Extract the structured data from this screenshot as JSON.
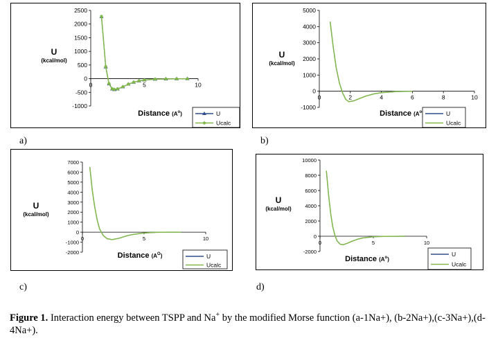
{
  "colors": {
    "u_line": "#2f4d8c",
    "ucalc_line": "#82b84a",
    "frame": "#000000",
    "text": "#000000"
  },
  "sub_labels": [
    "a)",
    "b)",
    "c)",
    "d)"
  ],
  "caption": {
    "lead": "Figure 1.",
    "text": " Interaction energy between TSPP and Na",
    "sup": "+",
    "tail": " by the modified Morse function (a-1Na+), (b-2Na+),(c-3Na+),(d-4Na+)."
  },
  "chart_data": [
    {
      "type": "line",
      "title": "",
      "xlabel_main": "Distance",
      "xlabel_unit": "(A",
      "xlabel_sup": "o",
      "xlabel_close": ")",
      "ylabel": "U",
      "ylabel_unit": "(kcal/mol)",
      "xlim": [
        0,
        10
      ],
      "ylim": [
        -1000,
        2500
      ],
      "x_ticks": [
        0,
        5,
        10
      ],
      "y_ticks": [
        2500,
        2000,
        1500,
        1000,
        500,
        0,
        -500,
        -1000
      ],
      "legend": [
        "U",
        "Ucalc"
      ],
      "series": [
        {
          "name": "U",
          "marker": "triangle",
          "x": [
            1.0,
            1.4,
            1.7,
            2.0,
            2.2,
            2.5,
            3.0,
            3.5,
            4.0,
            4.5,
            5.0,
            6.0,
            7.0,
            8.0,
            9.0
          ],
          "y": [
            2270,
            430,
            -190,
            -380,
            -400,
            -380,
            -300,
            -200,
            -130,
            -80,
            -50,
            -20,
            -10,
            -5,
            -2
          ]
        },
        {
          "name": "Ucalc",
          "marker": "circle",
          "x": [
            1.0,
            1.4,
            1.7,
            2.0,
            2.2,
            2.5,
            3.0,
            3.5,
            4.0,
            4.5,
            5.0,
            6.0,
            7.0,
            8.0,
            9.0
          ],
          "y": [
            2280,
            440,
            -180,
            -370,
            -395,
            -375,
            -295,
            -200,
            -130,
            -80,
            -50,
            -20,
            -10,
            -5,
            -2
          ]
        }
      ]
    },
    {
      "type": "line",
      "title": "",
      "xlabel_main": "Distance",
      "xlabel_unit": "(A",
      "xlabel_sup": "o",
      "xlabel_close": ")",
      "ylabel": "U",
      "ylabel_unit": "(kcal/mol)",
      "xlim": [
        0,
        10
      ],
      "ylim": [
        -1000,
        5000
      ],
      "x_ticks": [
        0,
        2,
        4,
        6,
        8,
        10
      ],
      "y_ticks": [
        5000,
        4000,
        3000,
        2000,
        1000,
        0,
        -1000
      ],
      "legend": [
        "U",
        "Ucalc"
      ],
      "series": [
        {
          "name": "U",
          "x": [
            0.7,
            0.9,
            1.1,
            1.3,
            1.5,
            1.7,
            1.9,
            2.2,
            2.6,
            3.0,
            3.5,
            4.0,
            5.0,
            6.0
          ],
          "y": [
            4300,
            2700,
            1400,
            500,
            -100,
            -500,
            -650,
            -600,
            -450,
            -300,
            -170,
            -90,
            -20,
            0
          ]
        },
        {
          "name": "Ucalc",
          "x": [
            0.7,
            0.9,
            1.1,
            1.3,
            1.5,
            1.7,
            1.9,
            2.2,
            2.6,
            3.0,
            3.5,
            4.0,
            5.0,
            6.0
          ],
          "y": [
            4300,
            2700,
            1400,
            500,
            -100,
            -500,
            -650,
            -600,
            -450,
            -300,
            -170,
            -90,
            -20,
            0
          ]
        }
      ]
    },
    {
      "type": "line",
      "title": "",
      "xlabel_main": "Distance",
      "xlabel_unit": "(A",
      "xlabel_sup": "O",
      "xlabel_close": ")",
      "ylabel": "U",
      "ylabel_unit": "(kcal/mol)",
      "xlim": [
        0,
        10
      ],
      "ylim": [
        -2000,
        7000
      ],
      "x_ticks": [
        0,
        5,
        10
      ],
      "y_ticks": [
        7000,
        6000,
        5000,
        4000,
        3000,
        2000,
        1000,
        0,
        -1000,
        -2000
      ],
      "legend": [
        "U",
        "Ucalc"
      ],
      "series": [
        {
          "name": "U",
          "x": [
            0.6,
            0.8,
            1.0,
            1.2,
            1.4,
            1.7,
            2.0,
            2.4,
            3.0,
            3.5,
            4.0,
            5.0,
            6.0,
            7.0,
            8.0
          ],
          "y": [
            6500,
            4200,
            2500,
            1200,
            300,
            -350,
            -650,
            -750,
            -600,
            -400,
            -250,
            -80,
            -20,
            0,
            0
          ]
        },
        {
          "name": "Ucalc",
          "x": [
            0.6,
            0.8,
            1.0,
            1.2,
            1.4,
            1.7,
            2.0,
            2.4,
            3.0,
            3.5,
            4.0,
            5.0,
            6.0,
            7.0,
            8.0
          ],
          "y": [
            6500,
            4200,
            2500,
            1200,
            300,
            -350,
            -650,
            -750,
            -600,
            -400,
            -250,
            -80,
            -20,
            0,
            0
          ]
        }
      ]
    },
    {
      "type": "line",
      "title": "",
      "xlabel_main": "Distance",
      "xlabel_unit": "(A",
      "xlabel_sup": "o",
      "xlabel_close": ")",
      "ylabel": "U",
      "ylabel_unit": "(kcal/mol)",
      "xlim": [
        0,
        10
      ],
      "ylim": [
        -2000,
        10000
      ],
      "x_ticks": [
        0,
        5,
        10
      ],
      "y_ticks": [
        10000,
        8000,
        6000,
        4000,
        2000,
        0,
        -2000
      ],
      "legend": [
        "U",
        "Ucalc"
      ],
      "series": [
        {
          "name": "U",
          "x": [
            0.6,
            0.8,
            1.0,
            1.2,
            1.4,
            1.6,
            1.9,
            2.2,
            2.6,
            3.0,
            3.5,
            4.0,
            5.0,
            6.0,
            8.0
          ],
          "y": [
            8600,
            5500,
            3000,
            1200,
            100,
            -600,
            -1050,
            -1100,
            -900,
            -650,
            -400,
            -230,
            -70,
            -20,
            0
          ]
        },
        {
          "name": "Ucalc",
          "x": [
            0.6,
            0.8,
            1.0,
            1.2,
            1.4,
            1.6,
            1.9,
            2.2,
            2.6,
            3.0,
            3.5,
            4.0,
            5.0,
            6.0,
            8.0
          ],
          "y": [
            8600,
            5500,
            3000,
            1200,
            100,
            -600,
            -1050,
            -1100,
            -900,
            -650,
            -400,
            -230,
            -70,
            -20,
            0
          ]
        }
      ]
    }
  ]
}
